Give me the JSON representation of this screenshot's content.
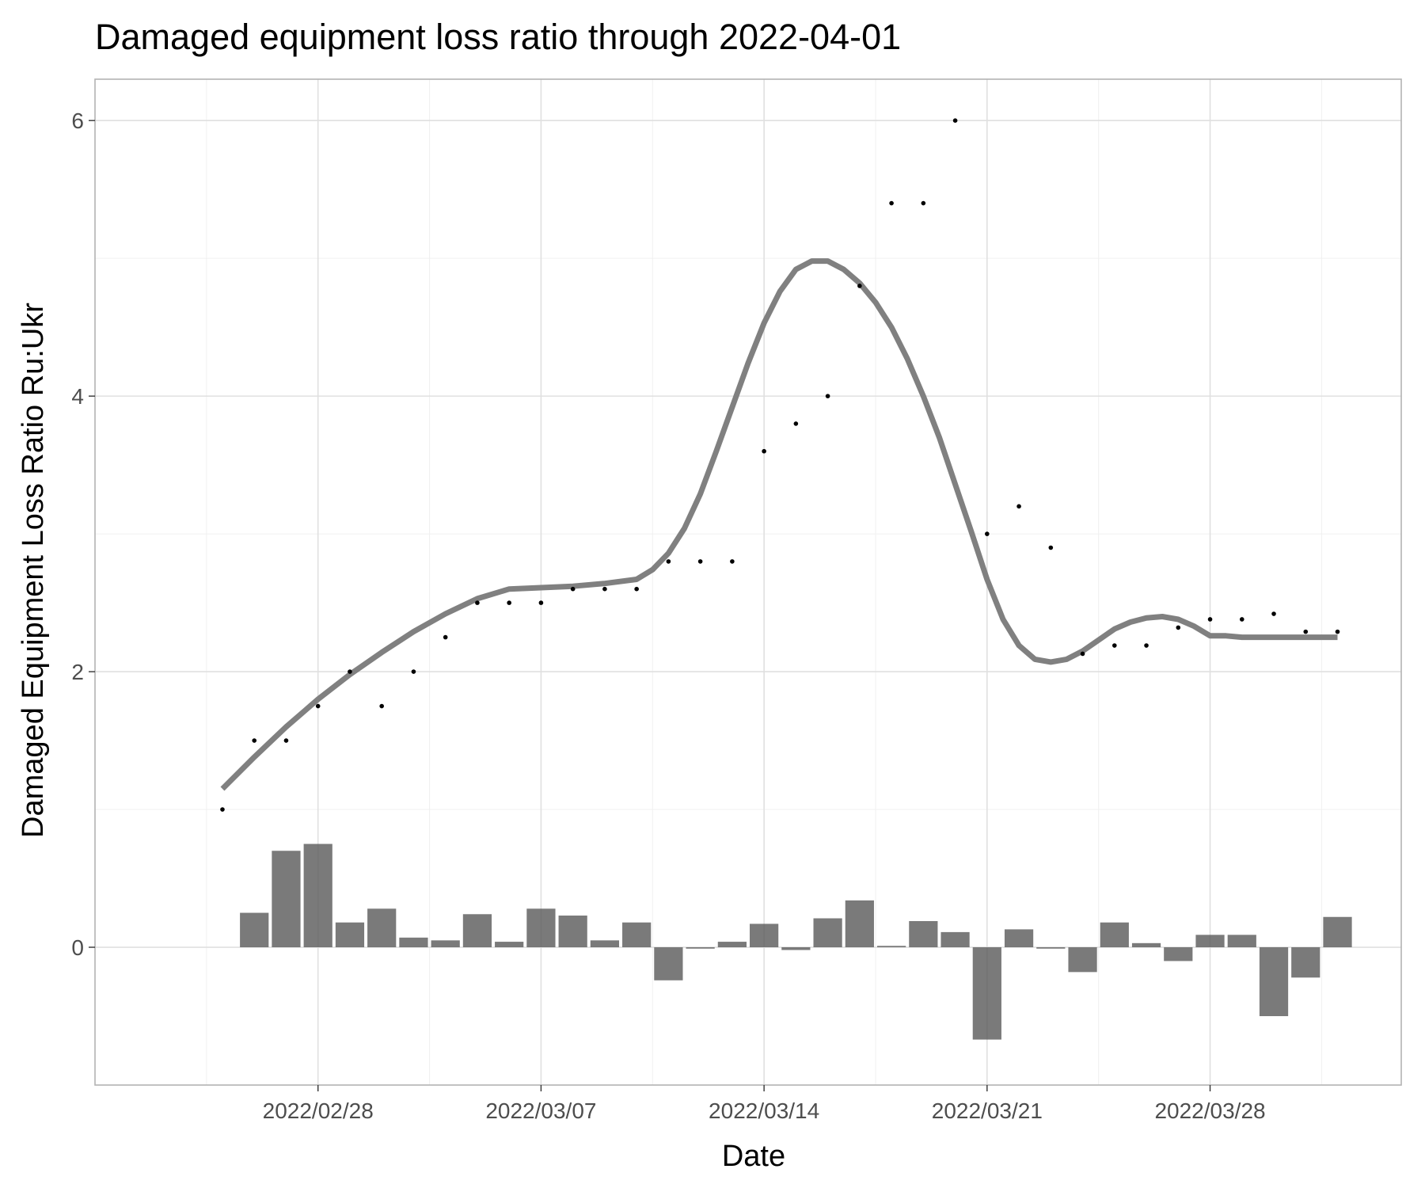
{
  "chart_data": {
    "type": "line",
    "title": "Damaged equipment loss ratio through 2022-04-01",
    "xlabel": "Date",
    "ylabel": "Damaged Equipment Loss Ratio Ru:Ukr",
    "x_tick_labels": [
      "2022/02/28",
      "2022/03/07",
      "2022/03/14",
      "2022/03/21",
      "2022/03/28"
    ],
    "y_tick_labels": [
      "0",
      "2",
      "4",
      "6"
    ],
    "x_ticks": [
      "2022-02-28",
      "2022-03-07",
      "2022-03-14",
      "2022-03-21",
      "2022-03-28"
    ],
    "y_ticks": [
      0,
      2,
      4,
      6
    ],
    "xlim": [
      "2022-02-21",
      "2022-04-03"
    ],
    "ylim": [
      -1.0,
      6.3
    ],
    "grid": true,
    "dates": [
      "2022-02-25",
      "2022-02-26",
      "2022-02-27",
      "2022-02-28",
      "2022-03-01",
      "2022-03-02",
      "2022-03-03",
      "2022-03-04",
      "2022-03-05",
      "2022-03-06",
      "2022-03-07",
      "2022-03-08",
      "2022-03-09",
      "2022-03-10",
      "2022-03-11",
      "2022-03-12",
      "2022-03-13",
      "2022-03-14",
      "2022-03-15",
      "2022-03-16",
      "2022-03-17",
      "2022-03-18",
      "2022-03-19",
      "2022-03-20",
      "2022-03-21",
      "2022-03-22",
      "2022-03-23",
      "2022-03-24",
      "2022-03-25",
      "2022-03-26",
      "2022-03-27",
      "2022-03-28",
      "2022-03-29",
      "2022-03-30",
      "2022-03-31",
      "2022-04-01"
    ],
    "series": [
      {
        "kind": "points",
        "values": [
          1.0,
          1.5,
          1.5,
          1.75,
          2.0,
          1.75,
          2.0,
          2.25,
          2.5,
          2.5,
          2.5,
          2.6,
          2.6,
          2.6,
          2.8,
          2.8,
          2.8,
          3.6,
          3.8,
          4.0,
          4.8,
          5.4,
          5.4,
          6.0,
          3.0,
          3.2,
          2.9,
          2.13,
          2.19,
          2.19,
          2.32,
          2.38,
          2.38,
          2.42,
          2.29,
          2.29
        ]
      },
      {
        "kind": "bars",
        "values": [
          null,
          0.25,
          0.7,
          0.75,
          0.18,
          0.28,
          0.07,
          0.05,
          0.24,
          0.04,
          0.28,
          0.23,
          0.05,
          0.18,
          -0.24,
          -0.01,
          0.04,
          0.17,
          -0.02,
          0.21,
          0.34,
          0.01,
          0.19,
          0.11,
          -0.67,
          0.13,
          -0.01,
          -0.18,
          0.18,
          0.03,
          -0.1,
          0.09,
          0.09,
          -0.5,
          -0.22,
          0.22
        ]
      },
      {
        "kind": "smooth-line",
        "x": [
          "2022-02-25",
          "2022-02-26",
          "2022-02-27",
          "2022-02-28",
          "2022-03-01",
          "2022-03-02",
          "2022-03-03",
          "2022-03-04",
          "2022-03-05",
          "2022-03-06",
          "2022-03-07",
          "2022-03-08",
          "2022-03-09",
          "2022-03-10",
          "2022-03-10T12:00",
          "2022-03-11",
          "2022-03-11T12:00",
          "2022-03-12",
          "2022-03-12T12:00",
          "2022-03-13",
          "2022-03-13T12:00",
          "2022-03-14",
          "2022-03-14T12:00",
          "2022-03-15",
          "2022-03-15T12:00",
          "2022-03-16",
          "2022-03-16T12:00",
          "2022-03-17",
          "2022-03-17T12:00",
          "2022-03-18",
          "2022-03-18T12:00",
          "2022-03-19",
          "2022-03-19T12:00",
          "2022-03-20",
          "2022-03-20T12:00",
          "2022-03-21",
          "2022-03-21T12:00",
          "2022-03-22",
          "2022-03-22T12:00",
          "2022-03-23",
          "2022-03-23T12:00",
          "2022-03-24",
          "2022-03-24T12:00",
          "2022-03-25",
          "2022-03-25T12:00",
          "2022-03-26",
          "2022-03-26T12:00",
          "2022-03-27",
          "2022-03-27T12:00",
          "2022-03-28",
          "2022-03-28T12:00",
          "2022-03-29",
          "2022-03-29T12:00",
          "2022-03-30",
          "2022-03-30T12:00",
          "2022-03-31",
          "2022-03-31T12:00",
          "2022-04-01"
        ],
        "values": [
          1.15,
          1.38,
          1.6,
          1.8,
          1.98,
          2.14,
          2.29,
          2.42,
          2.53,
          2.6,
          2.61,
          2.62,
          2.64,
          2.67,
          2.74,
          2.86,
          3.04,
          3.29,
          3.6,
          3.92,
          4.24,
          4.53,
          4.76,
          4.92,
          4.98,
          4.98,
          4.92,
          4.82,
          4.68,
          4.5,
          4.27,
          4.0,
          3.7,
          3.36,
          3.02,
          2.67,
          2.38,
          2.19,
          2.09,
          2.07,
          2.09,
          2.15,
          2.23,
          2.31,
          2.36,
          2.39,
          2.4,
          2.38,
          2.33,
          2.26,
          2.26,
          2.25,
          2.25,
          2.25,
          2.25,
          2.25,
          2.25,
          2.25
        ]
      }
    ]
  }
}
